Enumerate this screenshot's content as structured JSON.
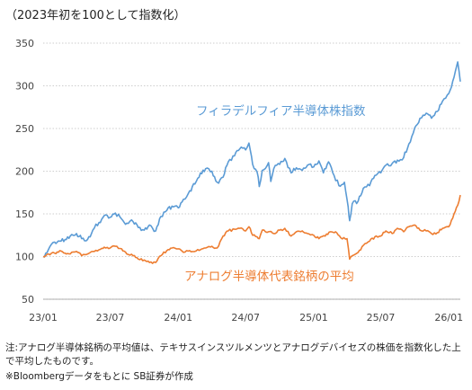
{
  "header": {
    "title": "（2023年初を100として指数化）"
  },
  "chart_data": {
    "type": "line",
    "title": "（2023年初を100として指数化）",
    "xlabel": "",
    "ylabel": "",
    "ylim": [
      50,
      350
    ],
    "yticks": [
      50,
      100,
      150,
      200,
      250,
      300,
      350
    ],
    "xticks": [
      {
        "date": "2023-01",
        "label": "23/01"
      },
      {
        "date": "2023-07",
        "label": "23/07"
      },
      {
        "date": "2024-01",
        "label": "24/01"
      },
      {
        "date": "2024-07",
        "label": "24/07"
      },
      {
        "date": "2025-01",
        "label": "25/01"
      },
      {
        "date": "2025-07",
        "label": "25/07"
      },
      {
        "date": "2026-01",
        "label": "26/01"
      }
    ],
    "xlim": [
      "2023-01-01",
      "2026-02-01"
    ],
    "grid": "horizontal dotted",
    "series": [
      {
        "name": "フィラデルフィア半導体株指数",
        "color": "#5b9bd5",
        "points": [
          [
            "2023-01-01",
            100
          ],
          [
            "2023-01-15",
            108
          ],
          [
            "2023-02-01",
            117
          ],
          [
            "2023-02-15",
            118
          ],
          [
            "2023-03-01",
            120
          ],
          [
            "2023-03-15",
            124
          ],
          [
            "2023-04-01",
            127
          ],
          [
            "2023-04-15",
            121
          ],
          [
            "2023-05-01",
            120
          ],
          [
            "2023-05-15",
            131
          ],
          [
            "2023-06-01",
            140
          ],
          [
            "2023-06-15",
            148
          ],
          [
            "2023-07-01",
            146
          ],
          [
            "2023-07-15",
            151
          ],
          [
            "2023-08-01",
            144
          ],
          [
            "2023-08-15",
            139
          ],
          [
            "2023-09-01",
            141
          ],
          [
            "2023-09-15",
            134
          ],
          [
            "2023-10-01",
            131
          ],
          [
            "2023-10-15",
            137
          ],
          [
            "2023-11-01",
            130
          ],
          [
            "2023-11-15",
            147
          ],
          [
            "2023-12-01",
            154
          ],
          [
            "2023-12-15",
            159
          ],
          [
            "2024-01-01",
            157
          ],
          [
            "2024-01-15",
            167
          ],
          [
            "2024-02-01",
            177
          ],
          [
            "2024-02-15",
            185
          ],
          [
            "2024-03-01",
            198
          ],
          [
            "2024-03-15",
            203
          ],
          [
            "2024-04-01",
            200
          ],
          [
            "2024-04-15",
            187
          ],
          [
            "2024-05-01",
            193
          ],
          [
            "2024-05-15",
            211
          ],
          [
            "2024-06-01",
            218
          ],
          [
            "2024-06-15",
            226
          ],
          [
            "2024-07-01",
            225
          ],
          [
            "2024-07-10",
            233
          ],
          [
            "2024-07-20",
            208
          ],
          [
            "2024-08-01",
            199
          ],
          [
            "2024-08-07",
            182
          ],
          [
            "2024-08-15",
            201
          ],
          [
            "2024-09-01",
            210
          ],
          [
            "2024-09-07",
            188
          ],
          [
            "2024-09-15",
            203
          ],
          [
            "2024-10-01",
            208
          ],
          [
            "2024-10-15",
            215
          ],
          [
            "2024-11-01",
            198
          ],
          [
            "2024-11-15",
            204
          ],
          [
            "2024-12-01",
            201
          ],
          [
            "2024-12-15",
            207
          ],
          [
            "2025-01-01",
            205
          ],
          [
            "2025-01-15",
            212
          ],
          [
            "2025-01-27",
            198
          ],
          [
            "2025-02-10",
            211
          ],
          [
            "2025-02-25",
            195
          ],
          [
            "2025-03-10",
            183
          ],
          [
            "2025-03-25",
            187
          ],
          [
            "2025-04-04",
            158
          ],
          [
            "2025-04-08",
            142
          ],
          [
            "2025-04-15",
            162
          ],
          [
            "2025-05-01",
            165
          ],
          [
            "2025-05-15",
            180
          ],
          [
            "2025-06-01",
            183
          ],
          [
            "2025-06-15",
            195
          ],
          [
            "2025-07-01",
            198
          ],
          [
            "2025-07-15",
            207
          ],
          [
            "2025-08-01",
            209
          ],
          [
            "2025-08-15",
            213
          ],
          [
            "2025-09-01",
            216
          ],
          [
            "2025-09-15",
            232
          ],
          [
            "2025-10-01",
            251
          ],
          [
            "2025-10-15",
            262
          ],
          [
            "2025-11-01",
            268
          ],
          [
            "2025-11-15",
            262
          ],
          [
            "2025-12-01",
            270
          ],
          [
            "2025-12-15",
            282
          ],
          [
            "2026-01-01",
            291
          ],
          [
            "2026-01-15",
            310
          ],
          [
            "2026-01-25",
            328
          ],
          [
            "2026-02-01",
            305
          ]
        ]
      },
      {
        "name": "アナログ半導体代表銘柄の平均",
        "color": "#ed7d31",
        "points": [
          [
            "2023-01-01",
            100
          ],
          [
            "2023-01-15",
            103
          ],
          [
            "2023-02-01",
            104
          ],
          [
            "2023-02-15",
            107
          ],
          [
            "2023-03-01",
            104
          ],
          [
            "2023-03-15",
            103
          ],
          [
            "2023-04-01",
            106
          ],
          [
            "2023-04-15",
            101
          ],
          [
            "2023-05-01",
            103
          ],
          [
            "2023-05-15",
            106
          ],
          [
            "2023-06-01",
            108
          ],
          [
            "2023-06-15",
            111
          ],
          [
            "2023-07-01",
            110
          ],
          [
            "2023-07-15",
            112
          ],
          [
            "2023-08-01",
            109
          ],
          [
            "2023-08-15",
            103
          ],
          [
            "2023-09-01",
            101
          ],
          [
            "2023-09-15",
            97
          ],
          [
            "2023-10-01",
            96
          ],
          [
            "2023-10-15",
            93
          ],
          [
            "2023-11-01",
            93
          ],
          [
            "2023-11-15",
            101
          ],
          [
            "2023-12-01",
            107
          ],
          [
            "2023-12-15",
            110
          ],
          [
            "2024-01-01",
            109
          ],
          [
            "2024-01-15",
            105
          ],
          [
            "2024-02-01",
            107
          ],
          [
            "2024-02-15",
            106
          ],
          [
            "2024-03-01",
            108
          ],
          [
            "2024-03-15",
            110
          ],
          [
            "2024-04-01",
            112
          ],
          [
            "2024-04-15",
            110
          ],
          [
            "2024-05-01",
            124
          ],
          [
            "2024-05-15",
            130
          ],
          [
            "2024-06-01",
            132
          ],
          [
            "2024-06-15",
            133
          ],
          [
            "2024-07-01",
            130
          ],
          [
            "2024-07-10",
            135
          ],
          [
            "2024-07-20",
            125
          ],
          [
            "2024-08-01",
            123
          ],
          [
            "2024-08-07",
            121
          ],
          [
            "2024-08-15",
            131
          ],
          [
            "2024-09-01",
            129
          ],
          [
            "2024-09-15",
            127
          ],
          [
            "2024-10-01",
            131
          ],
          [
            "2024-10-15",
            133
          ],
          [
            "2024-11-01",
            124
          ],
          [
            "2024-11-15",
            129
          ],
          [
            "2024-12-01",
            130
          ],
          [
            "2024-12-15",
            127
          ],
          [
            "2025-01-01",
            125
          ],
          [
            "2025-01-15",
            121
          ],
          [
            "2025-02-01",
            124
          ],
          [
            "2025-02-15",
            129
          ],
          [
            "2025-03-01",
            129
          ],
          [
            "2025-03-15",
            122
          ],
          [
            "2025-04-01",
            121
          ],
          [
            "2025-04-08",
            97
          ],
          [
            "2025-04-15",
            101
          ],
          [
            "2025-05-01",
            105
          ],
          [
            "2025-05-15",
            113
          ],
          [
            "2025-06-01",
            118
          ],
          [
            "2025-06-15",
            123
          ],
          [
            "2025-07-01",
            124
          ],
          [
            "2025-07-15",
            130
          ],
          [
            "2025-08-01",
            127
          ],
          [
            "2025-08-15",
            133
          ],
          [
            "2025-09-01",
            129
          ],
          [
            "2025-09-15",
            135
          ],
          [
            "2025-10-01",
            137
          ],
          [
            "2025-10-15",
            131
          ],
          [
            "2025-11-01",
            130
          ],
          [
            "2025-11-15",
            127
          ],
          [
            "2025-12-01",
            128
          ],
          [
            "2025-12-15",
            133
          ],
          [
            "2026-01-01",
            135
          ],
          [
            "2026-01-15",
            150
          ],
          [
            "2026-01-25",
            160
          ],
          [
            "2026-02-01",
            172
          ]
        ]
      }
    ],
    "annotations": [
      {
        "text": "フィラデルフィア半導体株指数",
        "series": 0
      },
      {
        "text": "アナログ半導体代表銘柄の平均",
        "series": 1
      }
    ]
  },
  "footnotes": {
    "note": "注:アナログ半導体銘柄の平均値は、テキサスインスツルメンツとアナログデバイセズの株価を指数化した上で平均したものです。",
    "source": "※Bloombergデータをもとに SB証券が作成"
  }
}
